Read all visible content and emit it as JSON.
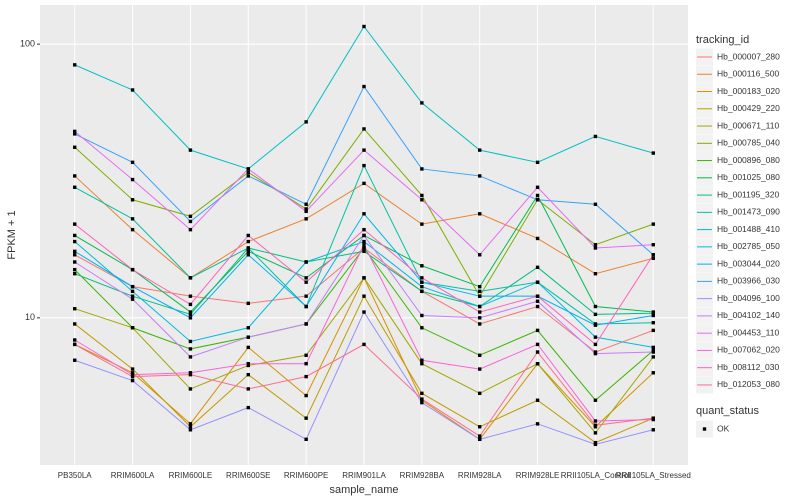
{
  "chart_data": {
    "type": "line",
    "x_label": "sample_name",
    "y_label": "FPKM + 1",
    "categories": [
      "PB350LA",
      "RRIM600LA",
      "RRIM600LE",
      "RRIM600SE",
      "RRIM600PE",
      "RRIM901LA",
      "RRIM928BA",
      "RRIM928LA",
      "RRIM928LE",
      "RRII105LA_Control",
      "RRII105LA_Stressed"
    ],
    "log_y": true,
    "ylim": [
      2.9,
      139
    ],
    "yticks": [
      10,
      100
    ],
    "grid": true,
    "legend_title": "tracking_id",
    "legend_position": "right",
    "shape_legend": {
      "title": "quant_status",
      "entries": [
        "OK"
      ]
    },
    "series": [
      {
        "name": "Hb_000007_280",
        "color": "#F8766D",
        "values": [
          17,
          13,
          12,
          11.3,
          12,
          18,
          12.5,
          9.5,
          11,
          7.5,
          9
        ]
      },
      {
        "name": "Hb_000116_500",
        "color": "#EA8331",
        "values": [
          33,
          21,
          14,
          19,
          23,
          31,
          22,
          24,
          19.5,
          14.5,
          16.5
        ]
      },
      {
        "name": "Hb_000183_020",
        "color": "#D89000",
        "values": [
          8,
          6.3,
          4.1,
          7.8,
          5.2,
          14,
          5,
          3.6,
          6.8,
          4.0,
          6.3
        ]
      },
      {
        "name": "Hb_000429_220",
        "color": "#C09B00",
        "values": [
          9.5,
          6.5,
          4.0,
          6.2,
          4.3,
          12,
          5.3,
          4.0,
          5.0,
          3.5,
          4.3
        ]
      },
      {
        "name": "Hb_000671_110",
        "color": "#A3A500",
        "values": [
          10.8,
          9.2,
          5.5,
          6.7,
          7.3,
          14,
          6.8,
          5.3,
          6.8,
          3.8,
          7.2
        ]
      },
      {
        "name": "Hb_000785_040",
        "color": "#7CAE00",
        "values": [
          42,
          27,
          23.5,
          34,
          25,
          49,
          28,
          12,
          27,
          18.5,
          22
        ]
      },
      {
        "name": "Hb_000896_080",
        "color": "#39B600",
        "values": [
          15,
          9.2,
          7.7,
          8.5,
          9.5,
          18,
          9.2,
          7.3,
          9.0,
          5.0,
          7.6
        ]
      },
      {
        "name": "Hb_001025_080",
        "color": "#00BB4E",
        "values": [
          20,
          15,
          10.5,
          17.5,
          14,
          20,
          15.5,
          13,
          28,
          11,
          10.5
        ]
      },
      {
        "name": "Hb_001195_320",
        "color": "#00BF7D",
        "values": [
          14.5,
          12,
          10.3,
          18,
          16,
          17.5,
          12.5,
          11,
          15.3,
          10.3,
          10.4
        ]
      },
      {
        "name": "Hb_001473_090",
        "color": "#00C1A3",
        "values": [
          30,
          23,
          14,
          18,
          11,
          36,
          13.5,
          12.5,
          13.5,
          9.5,
          9.6
        ]
      },
      {
        "name": "Hb_001488_410",
        "color": "#00BFC4",
        "values": [
          84,
          68,
          41,
          35,
          52,
          116,
          61,
          41,
          37,
          46,
          40
        ]
      },
      {
        "name": "Hb_002785_050",
        "color": "#00BAE0",
        "values": [
          19,
          12.5,
          8.2,
          9.2,
          16,
          19,
          13,
          11,
          13.5,
          8.5,
          7.8
        ]
      },
      {
        "name": "Hb_003044_020",
        "color": "#00B0F6",
        "values": [
          17.5,
          13,
          10,
          17,
          11,
          24,
          13.5,
          12,
          12,
          9.4,
          10.2
        ]
      },
      {
        "name": "Hb_003966_030",
        "color": "#35A2FF",
        "values": [
          47,
          37,
          22.5,
          33,
          26,
          70,
          35,
          33,
          27,
          26,
          17
        ]
      },
      {
        "name": "Hb_004096_100",
        "color": "#9590FF",
        "values": [
          7,
          5.9,
          3.9,
          4.7,
          3.6,
          10.5,
          4.9,
          3.6,
          4.1,
          3.45,
          3.9
        ]
      },
      {
        "name": "Hb_004102_140",
        "color": "#C77CFF",
        "values": [
          16,
          11.7,
          7.2,
          8.5,
          9.5,
          20,
          10.2,
          10,
          11.5,
          7.4,
          7.5
        ]
      },
      {
        "name": "Hb_004453_110",
        "color": "#E76BF3",
        "values": [
          48,
          32,
          21,
          35,
          24.5,
          41,
          27,
          17,
          30,
          18,
          18.5
        ]
      },
      {
        "name": "Hb_007062_020",
        "color": "#FA62DB",
        "values": [
          8.3,
          6.2,
          6.3,
          6.8,
          6.8,
          18.5,
          7.0,
          6.5,
          8.0,
          4.2,
          4.25
        ]
      },
      {
        "name": "Hb_008112_030",
        "color": "#FF62BC",
        "values": [
          22,
          15,
          11.2,
          20,
          13.5,
          21,
          14,
          10.5,
          12,
          8,
          17
        ]
      },
      {
        "name": "Hb_012053_080",
        "color": "#FF6C91",
        "values": [
          8,
          6.1,
          6.2,
          5.5,
          6.1,
          8,
          5.05,
          3.7,
          7.5,
          4.05,
          4.3
        ]
      }
    ]
  }
}
